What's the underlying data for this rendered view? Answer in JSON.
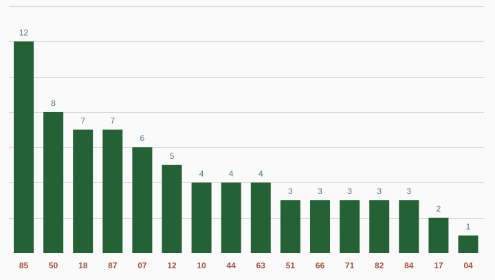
{
  "colors": {
    "bar": "#246235",
    "value_label": "#4e7990",
    "category_label": "#a3523a",
    "grid": "#d9d9d9",
    "background": "#fafafa"
  },
  "chart_data": {
    "type": "bar",
    "categories": [
      "85",
      "50",
      "18",
      "87",
      "07",
      "12",
      "10",
      "44",
      "63",
      "51",
      "66",
      "71",
      "82",
      "84",
      "17",
      "04"
    ],
    "values": [
      12,
      8,
      7,
      7,
      6,
      5,
      4,
      4,
      4,
      3,
      3,
      3,
      3,
      3,
      2,
      1
    ],
    "title": "",
    "xlabel": "",
    "ylabel": "",
    "ylim": [
      0,
      14
    ],
    "grid": true,
    "y_tick_labels_shown": false,
    "data_labels": true,
    "legend": "none"
  }
}
